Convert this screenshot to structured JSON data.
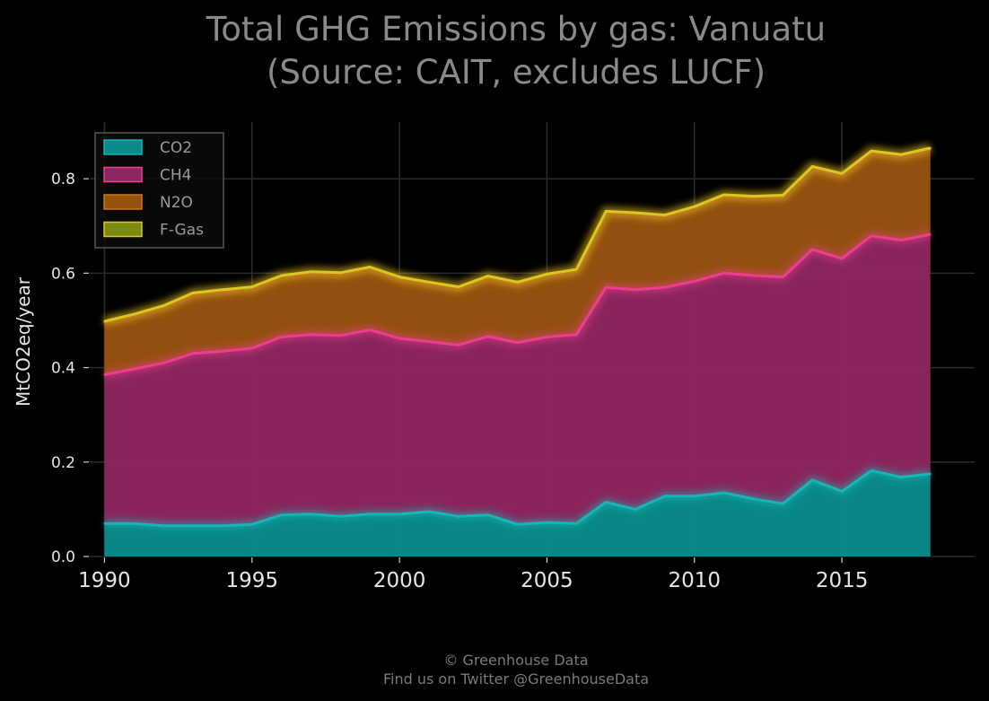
{
  "chart_data": {
    "type": "area",
    "stacked": true,
    "title": "Total GHG Emissions by gas: Vanuatu",
    "subtitle": "(Source: CAIT, excludes LUCF)",
    "xlabel": "",
    "ylabel": "MtCO2eq/year",
    "xlim": [
      1989.5,
      2019.5
    ],
    "ylim": [
      0,
      0.92
    ],
    "x_ticks": [
      1990,
      1995,
      2000,
      2005,
      2010,
      2015
    ],
    "y_ticks": [
      0.0,
      0.2,
      0.4,
      0.6,
      0.8
    ],
    "y_tick_labels": [
      "0.0",
      "0.2",
      "0.4",
      "0.6",
      "0.8"
    ],
    "grid": true,
    "legend_position": "top-left",
    "x": [
      1990,
      1991,
      1992,
      1993,
      1994,
      1995,
      1996,
      1997,
      1998,
      1999,
      2000,
      2001,
      2002,
      2003,
      2004,
      2005,
      2006,
      2007,
      2008,
      2009,
      2010,
      2011,
      2012,
      2013,
      2014,
      2015,
      2016,
      2017,
      2018
    ],
    "series": [
      {
        "name": "CO2",
        "color": "#0a8a8a",
        "line_color": "#17b5b5",
        "values": [
          0.07,
          0.07,
          0.065,
          0.065,
          0.065,
          0.068,
          0.088,
          0.09,
          0.085,
          0.09,
          0.09,
          0.095,
          0.085,
          0.088,
          0.068,
          0.072,
          0.07,
          0.115,
          0.1,
          0.128,
          0.128,
          0.135,
          0.122,
          0.112,
          0.162,
          0.138,
          0.182,
          0.168,
          0.175
        ]
      },
      {
        "name": "CH4",
        "color": "#8e265f",
        "line_color": "#ee3e8e",
        "values": [
          0.315,
          0.327,
          0.345,
          0.365,
          0.37,
          0.373,
          0.377,
          0.38,
          0.383,
          0.39,
          0.372,
          0.36,
          0.363,
          0.378,
          0.385,
          0.393,
          0.4,
          0.455,
          0.465,
          0.442,
          0.455,
          0.465,
          0.473,
          0.48,
          0.488,
          0.493,
          0.497,
          0.502,
          0.507
        ]
      },
      {
        "name": "N2O",
        "color": "#975210",
        "line_color": "#c8781a",
        "values": [
          0.11,
          0.113,
          0.118,
          0.125,
          0.127,
          0.127,
          0.127,
          0.13,
          0.13,
          0.13,
          0.127,
          0.123,
          0.12,
          0.125,
          0.125,
          0.13,
          0.135,
          0.158,
          0.16,
          0.15,
          0.155,
          0.163,
          0.165,
          0.17,
          0.173,
          0.177,
          0.177,
          0.178,
          0.18
        ]
      },
      {
        "name": "F-Gas",
        "color": "#7a8a10",
        "line_color": "#d8c820",
        "values": [
          0.003,
          0.003,
          0.003,
          0.003,
          0.003,
          0.003,
          0.003,
          0.003,
          0.003,
          0.003,
          0.003,
          0.003,
          0.003,
          0.003,
          0.003,
          0.003,
          0.003,
          0.003,
          0.003,
          0.003,
          0.003,
          0.003,
          0.003,
          0.003,
          0.003,
          0.003,
          0.003,
          0.003,
          0.003
        ]
      }
    ]
  },
  "footer": {
    "line1": "© Greenhouse Data",
    "line2": "Find us on Twitter @GreenhouseData"
  }
}
